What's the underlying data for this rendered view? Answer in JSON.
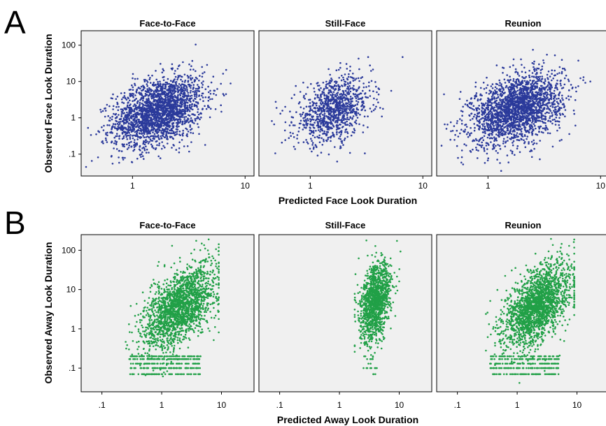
{
  "chart_data": [
    {
      "type": "scatter",
      "panel_label": "A",
      "x_scale": "log",
      "y_scale": "log",
      "xlabel": "Predicted Face Look Duration",
      "ylabel": "Observed Face Look Duration",
      "xlim": [
        0.35,
        12
      ],
      "ylim": [
        0.025,
        250
      ],
      "x_ticks": [
        {
          "value": 1,
          "label": "1"
        },
        {
          "value": 10,
          "label": "10"
        }
      ],
      "y_ticks": [
        {
          "value": 0.1,
          "label": ".1"
        },
        {
          "value": 1,
          "label": "1"
        },
        {
          "value": 10,
          "label": "10"
        },
        {
          "value": 100,
          "label": "100"
        }
      ],
      "color": "#2b3a9b",
      "grid": false,
      "facets": [
        {
          "title": "Face-to-Face",
          "n_points": 2200,
          "x_center": 1.7,
          "x_spread": 0.2,
          "y_center": 1.5,
          "y_spread": 0.45,
          "slope": 0.9
        },
        {
          "title": "Still-Face",
          "n_points": 1000,
          "x_center": 1.6,
          "x_spread": 0.17,
          "y_center": 1.6,
          "y_spread": 0.42,
          "slope": 0.9
        },
        {
          "title": "Reunion",
          "n_points": 2200,
          "x_center": 1.8,
          "x_spread": 0.2,
          "y_center": 1.8,
          "y_spread": 0.45,
          "slope": 0.9
        }
      ]
    },
    {
      "type": "scatter",
      "panel_label": "B",
      "x_scale": "log",
      "y_scale": "log",
      "xlabel": "Predicted Away Look Duration",
      "ylabel": "Observed Away Look Duration",
      "xlim": [
        0.045,
        35
      ],
      "ylim": [
        0.025,
        250
      ],
      "x_ticks": [
        {
          "value": 0.1,
          "label": ".1"
        },
        {
          "value": 1,
          "label": "1"
        },
        {
          "value": 10,
          "label": "10"
        }
      ],
      "y_ticks": [
        {
          "value": 0.1,
          "label": ".1"
        },
        {
          "value": 1,
          "label": "1"
        },
        {
          "value": 10,
          "label": "10"
        },
        {
          "value": 100,
          "label": "100"
        }
      ],
      "color": "#21a047",
      "grid": false,
      "floor_values": [
        0.07,
        0.1,
        0.13,
        0.17,
        0.2
      ],
      "facets": [
        {
          "title": "Face-to-Face",
          "n_points": 1900,
          "x_center": 2.0,
          "x_spread": 0.3,
          "y_center": 3.5,
          "y_spread": 0.45,
          "slope": 1.0,
          "x_min": 0.25,
          "x_max": 9,
          "floor_points": 350,
          "floor_x_range": [
            0.28,
            4.5
          ]
        },
        {
          "title": "Still-Face",
          "n_points": 1300,
          "x_center": 4.0,
          "x_spread": 0.13,
          "y_center": 5.0,
          "y_spread": 0.45,
          "slope": 1.2,
          "x_min": 1.8,
          "x_max": 11,
          "floor_points": 20,
          "floor_x_range": [
            2.5,
            4.5
          ]
        },
        {
          "title": "Reunion",
          "n_points": 2000,
          "x_center": 2.2,
          "x_spread": 0.28,
          "y_center": 4.0,
          "y_spread": 0.45,
          "slope": 1.0,
          "x_min": 0.3,
          "x_max": 9,
          "floor_points": 320,
          "floor_x_range": [
            0.35,
            5.0
          ]
        }
      ]
    }
  ]
}
